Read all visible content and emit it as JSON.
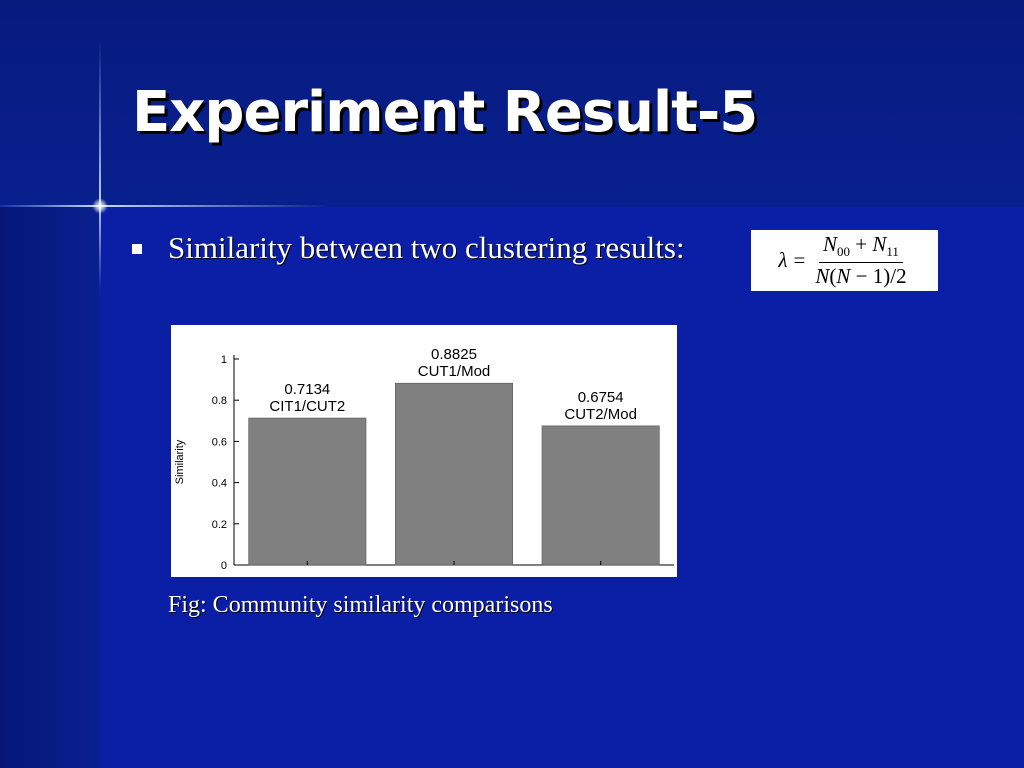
{
  "slide": {
    "title": "Experiment Result-5",
    "bullet": "Similarity between two clustering results:",
    "caption": "Fig: Community similarity comparisons"
  },
  "formula": {
    "lhs": "λ",
    "eq": "=",
    "num_n1": "N",
    "num_sub1": "00",
    "plus": "+",
    "num_n2": "N",
    "num_sub2": "11",
    "den_n1": "N",
    "den_open": "(",
    "den_n2": "N",
    "den_rest": " − 1)/2"
  },
  "colors": {
    "background": "#0a1ea6",
    "bar": "#808080",
    "text": "#ffffff"
  },
  "chart_data": {
    "type": "bar",
    "categories": [
      "CIT1/CUT2",
      "CUT1/Mod",
      "CUT2/Mod"
    ],
    "values": [
      0.7134,
      0.8825,
      0.6754
    ],
    "value_labels": [
      "0.7134",
      "0.8825",
      "0.6754"
    ],
    "title": "",
    "xlabel": "",
    "ylabel": "Similarity",
    "ylim": [
      0,
      1
    ],
    "yticks": [
      0,
      0.2,
      0.4,
      0.6,
      0.8,
      1
    ],
    "ytick_labels": [
      "0",
      "0.2",
      "0.4",
      "0.6",
      "0.8",
      "1"
    ],
    "grid": false,
    "legend": "none"
  }
}
